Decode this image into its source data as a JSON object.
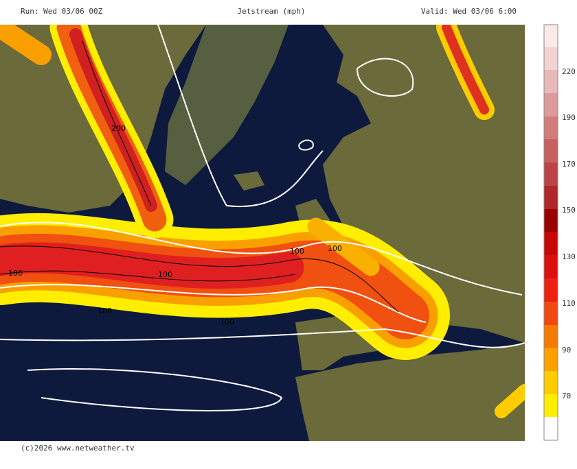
{
  "header": {
    "run": "Run: Wed 03/06 00Z",
    "title": "Jetstream (mph)",
    "valid": "Valid: Wed 03/06 6:00"
  },
  "footer": "(c)2026 www.netweather.tv",
  "legend": {
    "labels": [
      "70",
      "90",
      "110",
      "130",
      "150",
      "170",
      "190",
      "220"
    ]
  },
  "map": {
    "contour_labels": [
      "100",
      "100",
      "100",
      "100",
      "100",
      "100",
      "200"
    ]
  }
}
